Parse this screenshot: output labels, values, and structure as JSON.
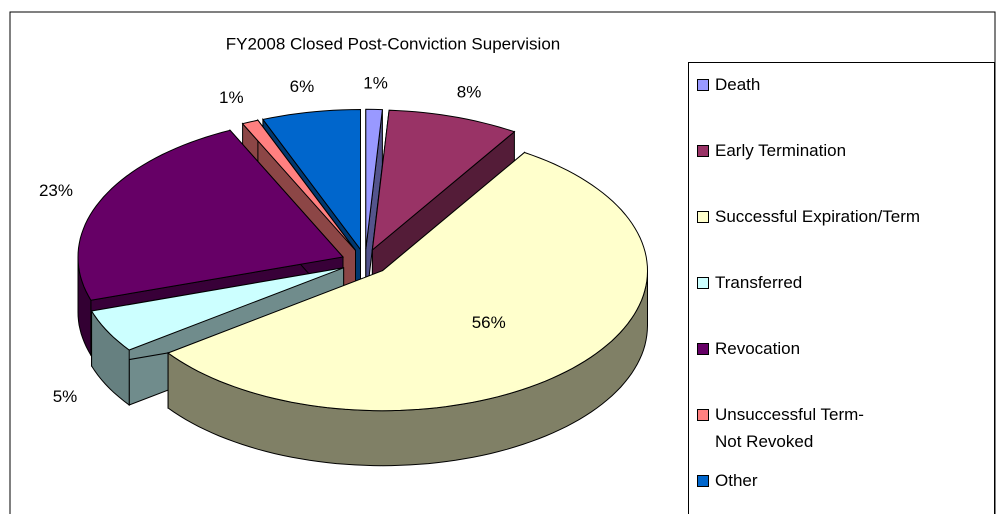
{
  "chart_data": {
    "type": "pie3d",
    "title": "FY2008 Closed Post-Conviction Supervision",
    "categories": [
      "Death",
      "Early Termination",
      "Successful Expiration/Term",
      "Transferred",
      "Revocation",
      "Unsuccessful Term-\nNot Revoked",
      "Other"
    ],
    "values": [
      1,
      8,
      56,
      5,
      23,
      1,
      6
    ],
    "value_labels": [
      "1%",
      "8%",
      "56%",
      "5%",
      "23%",
      "1%",
      "6%"
    ],
    "colors": [
      "#9999ff",
      "#993366",
      "#ffffcc",
      "#ccffff",
      "#660066",
      "#ff8080",
      "#0066cc"
    ],
    "legend": "right"
  }
}
